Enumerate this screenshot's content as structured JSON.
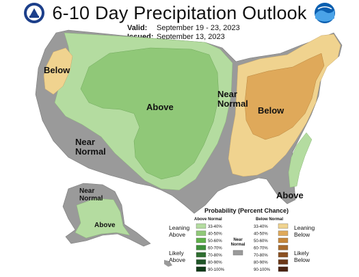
{
  "header": {
    "title": "6-10 Day Precipitation Outlook",
    "valid_label": "Valid:",
    "valid_value": "September 19 - 23, 2023",
    "issued_label": "Issued:",
    "issued_value": "September 13, 2023"
  },
  "logos": {
    "left": "noaa-seal-icon",
    "right": "noaa-logo-icon"
  },
  "map_labels": {
    "pacific_nw": "Below",
    "central": "Above",
    "southwest": "Near Normal",
    "midwest": "Near Normal",
    "east": "Below",
    "southeast": "Above",
    "alaska_north": "Near Normal",
    "alaska_south": "Above"
  },
  "legend": {
    "title": "Probability (Percent Chance)",
    "above_header": "Above Normal",
    "below_header": "Below Normal",
    "near_label": "Near Normal",
    "leaning_above": "Leaning Above",
    "likely_above": "Likely Above",
    "leaning_below": "Leaning Below",
    "likely_below": "Likely Below",
    "above_bins": [
      {
        "range": "33-40%",
        "color": "#b4dca0"
      },
      {
        "range": "40-50%",
        "color": "#90c878"
      },
      {
        "range": "50-60%",
        "color": "#5fb14a"
      },
      {
        "range": "60-70%",
        "color": "#3d8f3a"
      },
      {
        "range": "70-80%",
        "color": "#2e6e30"
      },
      {
        "range": "80-90%",
        "color": "#1f5527"
      },
      {
        "range": "90-100%",
        "color": "#103a18"
      }
    ],
    "below_bins": [
      {
        "range": "33-40%",
        "color": "#f0d38f"
      },
      {
        "range": "40-50%",
        "color": "#dfa95a"
      },
      {
        "range": "50-60%",
        "color": "#c7873a"
      },
      {
        "range": "60-70%",
        "color": "#a86a2c"
      },
      {
        "range": "70-80%",
        "color": "#8a4f21"
      },
      {
        "range": "80-90%",
        "color": "#6b3616"
      },
      {
        "range": "90-100%",
        "color": "#4a2210"
      }
    ],
    "near_color": "#9a9a9a"
  },
  "colors": {
    "near_normal": "#9a9a9a",
    "above_33": "#b4dca0",
    "above_40": "#90c878",
    "below_33": "#f0d38f",
    "below_40": "#dfa95a"
  }
}
